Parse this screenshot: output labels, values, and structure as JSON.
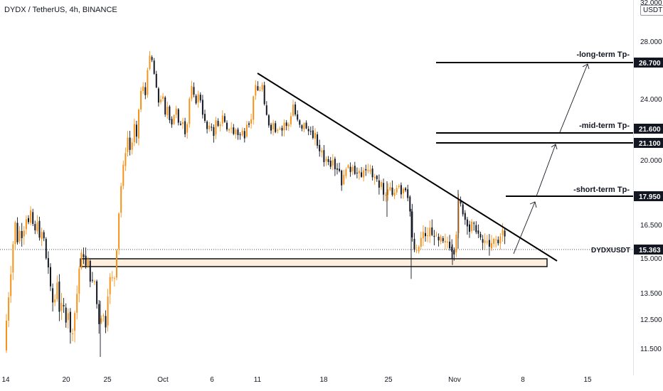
{
  "chart_header": {
    "title": "DYDX / TetherUS, 4h, BINANCE",
    "currency_unit": "USDT"
  },
  "colors": {
    "up_candle": "#f7931a",
    "down_candle": "#131722",
    "annotation_line": "#000000",
    "zone_fill": "#fdeedd",
    "label_bg": "#131722"
  },
  "chart_data": {
    "type": "candlestick",
    "symbol": "DYDXUSDT",
    "current_price": 15.363,
    "ylim": [
      10.5,
      32.0
    ],
    "y_scale": "non-linear price scale (as printed)",
    "y_ticks": [
      "32.000",
      "28.000",
      "24.000",
      "20.000",
      "16.500",
      "15.000",
      "13.500",
      "12.500",
      "11.500"
    ],
    "x_ticks": [
      "14",
      "20",
      "25",
      "Oct",
      "6",
      "11",
      "18",
      "25",
      "Nov",
      "8",
      "15"
    ],
    "price_path": [
      [
        0,
        11.6
      ],
      [
        3,
        12.2
      ],
      [
        6,
        11.4
      ],
      [
        10,
        12.8
      ],
      [
        14,
        13.9
      ],
      [
        17,
        15.1
      ],
      [
        21,
        16.7
      ],
      [
        25,
        15.6
      ],
      [
        28,
        16.3
      ],
      [
        32,
        15.8
      ],
      [
        36,
        16.9
      ],
      [
        40,
        16.6
      ],
      [
        44,
        17.3
      ],
      [
        48,
        15.9
      ],
      [
        52,
        16.8
      ],
      [
        56,
        15.7
      ],
      [
        60,
        16.4
      ],
      [
        64,
        15.1
      ],
      [
        68,
        14.6
      ],
      [
        72,
        13.4
      ],
      [
        76,
        12.9
      ],
      [
        80,
        14.1
      ],
      [
        84,
        12.6
      ],
      [
        88,
        13.3
      ],
      [
        92,
        12.4
      ],
      [
        96,
        12.8
      ],
      [
        100,
        11.7
      ],
      [
        104,
        12.5
      ],
      [
        108,
        13.4
      ],
      [
        112,
        14.8
      ],
      [
        116,
        15.4
      ],
      [
        120,
        14.6
      ],
      [
        124,
        14.9
      ],
      [
        128,
        13.7
      ],
      [
        132,
        14.3
      ],
      [
        136,
        13.1
      ],
      [
        140,
        12.2
      ],
      [
        144,
        12.9
      ],
      [
        148,
        12.1
      ],
      [
        152,
        13.6
      ],
      [
        156,
        14.4
      ],
      [
        160,
        13.8
      ],
      [
        164,
        15.4
      ],
      [
        168,
        17.6
      ],
      [
        172,
        19.3
      ],
      [
        176,
        20.4
      ],
      [
        180,
        21.5
      ],
      [
        184,
        20.2
      ],
      [
        188,
        22.4
      ],
      [
        192,
        21.3
      ],
      [
        196,
        23.9
      ],
      [
        200,
        25.2
      ],
      [
        204,
        24.1
      ],
      [
        208,
        26.6
      ],
      [
        212,
        27.3
      ],
      [
        216,
        26.1
      ],
      [
        220,
        24.7
      ],
      [
        224,
        23.4
      ],
      [
        228,
        24.6
      ],
      [
        232,
        22.8
      ],
      [
        236,
        23.6
      ],
      [
        240,
        21.9
      ],
      [
        244,
        22.8
      ],
      [
        248,
        23.3
      ],
      [
        252,
        21.8
      ],
      [
        256,
        22.7
      ],
      [
        260,
        21.6
      ],
      [
        264,
        22.4
      ],
      [
        268,
        25.2
      ],
      [
        272,
        24.3
      ],
      [
        276,
        23.7
      ],
      [
        280,
        24.6
      ],
      [
        284,
        23.1
      ],
      [
        288,
        22.4
      ],
      [
        292,
        21.7
      ],
      [
        296,
        22.3
      ],
      [
        300,
        21.4
      ],
      [
        304,
        22.6
      ],
      [
        308,
        21.8
      ],
      [
        312,
        22.9
      ],
      [
        316,
        22.3
      ],
      [
        320,
        21.6
      ],
      [
        324,
        22.2
      ],
      [
        328,
        21.5
      ],
      [
        332,
        21.9
      ],
      [
        336,
        21.3
      ],
      [
        340,
        21.8
      ],
      [
        344,
        21.4
      ],
      [
        348,
        22.6
      ],
      [
        352,
        21.9
      ],
      [
        356,
        24.2
      ],
      [
        360,
        25.1
      ],
      [
        364,
        24.3
      ],
      [
        368,
        25.3
      ],
      [
        372,
        23.4
      ],
      [
        376,
        22.6
      ],
      [
        380,
        21.7
      ],
      [
        384,
        22.3
      ],
      [
        388,
        21.6
      ],
      [
        392,
        22.1
      ],
      [
        396,
        21.7
      ],
      [
        400,
        22.4
      ],
      [
        404,
        21.9
      ],
      [
        408,
        22.6
      ],
      [
        412,
        23.6
      ],
      [
        416,
        22.7
      ],
      [
        420,
        22.3
      ],
      [
        424,
        21.8
      ],
      [
        428,
        22.4
      ],
      [
        432,
        21.6
      ],
      [
        436,
        21.9
      ],
      [
        440,
        21.3
      ],
      [
        444,
        21.6
      ],
      [
        448,
        20.4
      ],
      [
        452,
        20.7
      ],
      [
        456,
        19.8
      ],
      [
        460,
        20.2
      ],
      [
        464,
        19.6
      ],
      [
        468,
        20.1
      ],
      [
        472,
        19.3
      ],
      [
        476,
        19.7
      ],
      [
        480,
        18.6
      ],
      [
        484,
        19.2
      ],
      [
        488,
        19.8
      ],
      [
        492,
        19.3
      ],
      [
        496,
        19.7
      ],
      [
        500,
        19.1
      ],
      [
        504,
        19.4
      ],
      [
        508,
        19.0
      ],
      [
        512,
        19.6
      ],
      [
        516,
        19.2
      ],
      [
        520,
        19.6
      ],
      [
        524,
        18.9
      ],
      [
        528,
        19.2
      ],
      [
        532,
        18.4
      ],
      [
        536,
        18.7
      ],
      [
        540,
        17.8
      ],
      [
        544,
        18.2
      ],
      [
        548,
        18.5
      ],
      [
        552,
        17.9
      ],
      [
        556,
        18.3
      ],
      [
        560,
        18.7
      ],
      [
        564,
        18.1
      ],
      [
        568,
        18.5
      ],
      [
        572,
        18.2
      ],
      [
        576,
        17.3
      ],
      [
        580,
        15.6
      ],
      [
        584,
        15.2
      ],
      [
        588,
        15.4
      ],
      [
        592,
        15.9
      ],
      [
        596,
        16.2
      ],
      [
        600,
        15.8
      ],
      [
        604,
        16.4
      ],
      [
        608,
        15.9
      ],
      [
        612,
        16.1
      ],
      [
        616,
        15.7
      ],
      [
        620,
        15.9
      ],
      [
        624,
        15.6
      ],
      [
        628,
        15.8
      ],
      [
        632,
        15.5
      ],
      [
        636,
        15.3
      ],
      [
        640,
        15.2
      ],
      [
        644,
        17.8
      ],
      [
        648,
        17.5
      ],
      [
        652,
        16.9
      ],
      [
        656,
        16.6
      ],
      [
        660,
        16.2
      ],
      [
        664,
        16.7
      ],
      [
        668,
        16.3
      ],
      [
        672,
        16.1
      ],
      [
        676,
        15.8
      ],
      [
        680,
        15.6
      ],
      [
        684,
        15.9
      ],
      [
        688,
        15.4
      ],
      [
        692,
        15.7
      ],
      [
        696,
        15.9
      ],
      [
        700,
        15.6
      ],
      [
        704,
        16.1
      ],
      [
        708,
        16.3
      ],
      [
        712,
        15.363
      ]
    ],
    "support_zone": {
      "from_price": 14.75,
      "to_price": 15.15
    },
    "trendline": {
      "start": [
        362,
        25.6
      ],
      "end": [
        783,
        15.0
      ]
    },
    "targets": [
      {
        "label": "-long-term Tp-",
        "value": "26.700"
      },
      {
        "label": "-mid-term Tp-",
        "value": "21.600"
      },
      {
        "label": "",
        "value": "21.100"
      },
      {
        "label": "-short-term Tp-",
        "value": "17.950"
      }
    ]
  }
}
